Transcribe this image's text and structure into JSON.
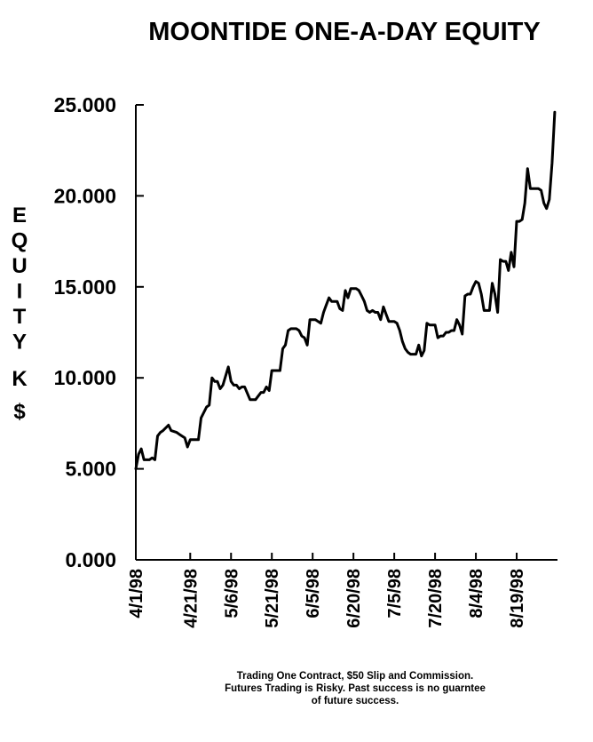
{
  "chart_data": {
    "type": "line",
    "title": "MOONTIDE ONE-A-DAY EQUITY",
    "ylabel": "EQUITY K$",
    "ylim": [
      0,
      25
    ],
    "yticks": [
      "0.000",
      "5.000",
      "10.000",
      "15.000",
      "20.000",
      "25.000"
    ],
    "xtick_labels": [
      "4/1/98",
      "4/21/98",
      "5/6/98",
      "5/21/98",
      "6/5/98",
      "6/20/98",
      "7/5/98",
      "7/20/98",
      "8/4/98",
      "8/19/98"
    ],
    "x_start": "1998-04-01",
    "x_end": "1998-09-03",
    "series": [
      {
        "points": [
          [
            "1998-04-01",
            5.0
          ],
          [
            "1998-04-02",
            5.8
          ],
          [
            "1998-04-03",
            6.1
          ],
          [
            "1998-04-04",
            5.5
          ],
          [
            "1998-04-06",
            5.5
          ],
          [
            "1998-04-07",
            5.6
          ],
          [
            "1998-04-08",
            5.5
          ],
          [
            "1998-04-09",
            6.8
          ],
          [
            "1998-04-10",
            7.0
          ],
          [
            "1998-04-11",
            7.1
          ],
          [
            "1998-04-13",
            7.4
          ],
          [
            "1998-04-14",
            7.1
          ],
          [
            "1998-04-16",
            7.0
          ],
          [
            "1998-04-17",
            6.9
          ],
          [
            "1998-04-19",
            6.7
          ],
          [
            "1998-04-20",
            6.2
          ],
          [
            "1998-04-21",
            6.6
          ],
          [
            "1998-04-23",
            6.6
          ],
          [
            "1998-04-24",
            6.6
          ],
          [
            "1998-04-25",
            7.8
          ],
          [
            "1998-04-27",
            8.4
          ],
          [
            "1998-04-28",
            8.5
          ],
          [
            "1998-04-29",
            10.0
          ],
          [
            "1998-04-30",
            9.8
          ],
          [
            "1998-05-01",
            9.8
          ],
          [
            "1998-05-02",
            9.4
          ],
          [
            "1998-05-03",
            9.6
          ],
          [
            "1998-05-05",
            10.6
          ],
          [
            "1998-05-06",
            9.8
          ],
          [
            "1998-05-07",
            9.6
          ],
          [
            "1998-05-08",
            9.6
          ],
          [
            "1998-05-09",
            9.4
          ],
          [
            "1998-05-10",
            9.5
          ],
          [
            "1998-05-11",
            9.5
          ],
          [
            "1998-05-13",
            8.8
          ],
          [
            "1998-05-15",
            8.8
          ],
          [
            "1998-05-16",
            9.0
          ],
          [
            "1998-05-17",
            9.2
          ],
          [
            "1998-05-18",
            9.2
          ],
          [
            "1998-05-19",
            9.5
          ],
          [
            "1998-05-20",
            9.3
          ],
          [
            "1998-05-21",
            10.4
          ],
          [
            "1998-05-22",
            10.4
          ],
          [
            "1998-05-24",
            10.4
          ],
          [
            "1998-05-25",
            11.6
          ],
          [
            "1998-05-26",
            11.8
          ],
          [
            "1998-05-27",
            12.6
          ],
          [
            "1998-05-28",
            12.7
          ],
          [
            "1998-05-30",
            12.7
          ],
          [
            "1998-05-31",
            12.6
          ],
          [
            "1998-06-01",
            12.3
          ],
          [
            "1998-06-02",
            12.2
          ],
          [
            "1998-06-03",
            11.8
          ],
          [
            "1998-06-04",
            13.2
          ],
          [
            "1998-06-05",
            13.2
          ],
          [
            "1998-06-06",
            13.2
          ],
          [
            "1998-06-07",
            13.1
          ],
          [
            "1998-06-08",
            13.0
          ],
          [
            "1998-06-09",
            13.6
          ],
          [
            "1998-06-10",
            14.0
          ],
          [
            "1998-06-11",
            14.4
          ],
          [
            "1998-06-12",
            14.2
          ],
          [
            "1998-06-14",
            14.2
          ],
          [
            "1998-06-15",
            13.8
          ],
          [
            "1998-06-16",
            13.7
          ],
          [
            "1998-06-17",
            14.8
          ],
          [
            "1998-06-18",
            14.4
          ],
          [
            "1998-06-19",
            14.9
          ],
          [
            "1998-06-20",
            14.9
          ],
          [
            "1998-06-21",
            14.9
          ],
          [
            "1998-06-22",
            14.8
          ],
          [
            "1998-06-23",
            14.5
          ],
          [
            "1998-06-24",
            14.2
          ],
          [
            "1998-06-25",
            13.7
          ],
          [
            "1998-06-26",
            13.6
          ],
          [
            "1998-06-27",
            13.7
          ],
          [
            "1998-06-28",
            13.6
          ],
          [
            "1998-06-29",
            13.6
          ],
          [
            "1998-06-30",
            13.2
          ],
          [
            "1998-07-01",
            13.9
          ],
          [
            "1998-07-02",
            13.5
          ],
          [
            "1998-07-03",
            13.1
          ],
          [
            "1998-07-04",
            13.1
          ],
          [
            "1998-07-05",
            13.1
          ],
          [
            "1998-07-06",
            13.0
          ],
          [
            "1998-07-07",
            12.6
          ],
          [
            "1998-07-08",
            12.0
          ],
          [
            "1998-07-09",
            11.6
          ],
          [
            "1998-07-10",
            11.4
          ],
          [
            "1998-07-11",
            11.3
          ],
          [
            "1998-07-12",
            11.3
          ],
          [
            "1998-07-13",
            11.3
          ],
          [
            "1998-07-14",
            11.8
          ],
          [
            "1998-07-15",
            11.2
          ],
          [
            "1998-07-16",
            11.5
          ],
          [
            "1998-07-17",
            13.0
          ],
          [
            "1998-07-18",
            12.9
          ],
          [
            "1998-07-19",
            12.9
          ],
          [
            "1998-07-20",
            12.9
          ],
          [
            "1998-07-21",
            12.2
          ],
          [
            "1998-07-22",
            12.3
          ],
          [
            "1998-07-23",
            12.3
          ],
          [
            "1998-07-24",
            12.5
          ],
          [
            "1998-07-25",
            12.5
          ],
          [
            "1998-07-26",
            12.6
          ],
          [
            "1998-07-27",
            12.6
          ],
          [
            "1998-07-28",
            13.2
          ],
          [
            "1998-07-29",
            12.9
          ],
          [
            "1998-07-30",
            12.4
          ],
          [
            "1998-07-31",
            14.5
          ],
          [
            "1998-08-01",
            14.6
          ],
          [
            "1998-08-02",
            14.6
          ],
          [
            "1998-08-03",
            15.0
          ],
          [
            "1998-08-04",
            15.3
          ],
          [
            "1998-08-05",
            15.2
          ],
          [
            "1998-08-06",
            14.6
          ],
          [
            "1998-08-07",
            13.7
          ],
          [
            "1998-08-08",
            13.7
          ],
          [
            "1998-08-09",
            13.7
          ],
          [
            "1998-08-10",
            15.2
          ],
          [
            "1998-08-11",
            14.6
          ],
          [
            "1998-08-12",
            13.6
          ],
          [
            "1998-08-13",
            16.5
          ],
          [
            "1998-08-14",
            16.4
          ],
          [
            "1998-08-15",
            16.4
          ],
          [
            "1998-08-16",
            15.9
          ],
          [
            "1998-08-17",
            16.9
          ],
          [
            "1998-08-18",
            16.1
          ],
          [
            "1998-08-19",
            18.6
          ],
          [
            "1998-08-20",
            18.6
          ],
          [
            "1998-08-21",
            18.7
          ],
          [
            "1998-08-22",
            19.6
          ],
          [
            "1998-08-23",
            21.5
          ],
          [
            "1998-08-24",
            20.4
          ],
          [
            "1998-08-25",
            20.4
          ],
          [
            "1998-08-26",
            20.4
          ],
          [
            "1998-08-27",
            20.4
          ],
          [
            "1998-08-28",
            20.3
          ],
          [
            "1998-08-29",
            19.6
          ],
          [
            "1998-08-30",
            19.3
          ],
          [
            "1998-08-31",
            19.8
          ],
          [
            "1998-09-01",
            21.8
          ],
          [
            "1998-09-02",
            24.6
          ]
        ]
      }
    ]
  },
  "footnote": {
    "line1": "Trading One Contract, $50 Slip and Commission.",
    "line2": "Futures Trading is Risky. Past success is no guarntee",
    "line3": "of future success."
  }
}
